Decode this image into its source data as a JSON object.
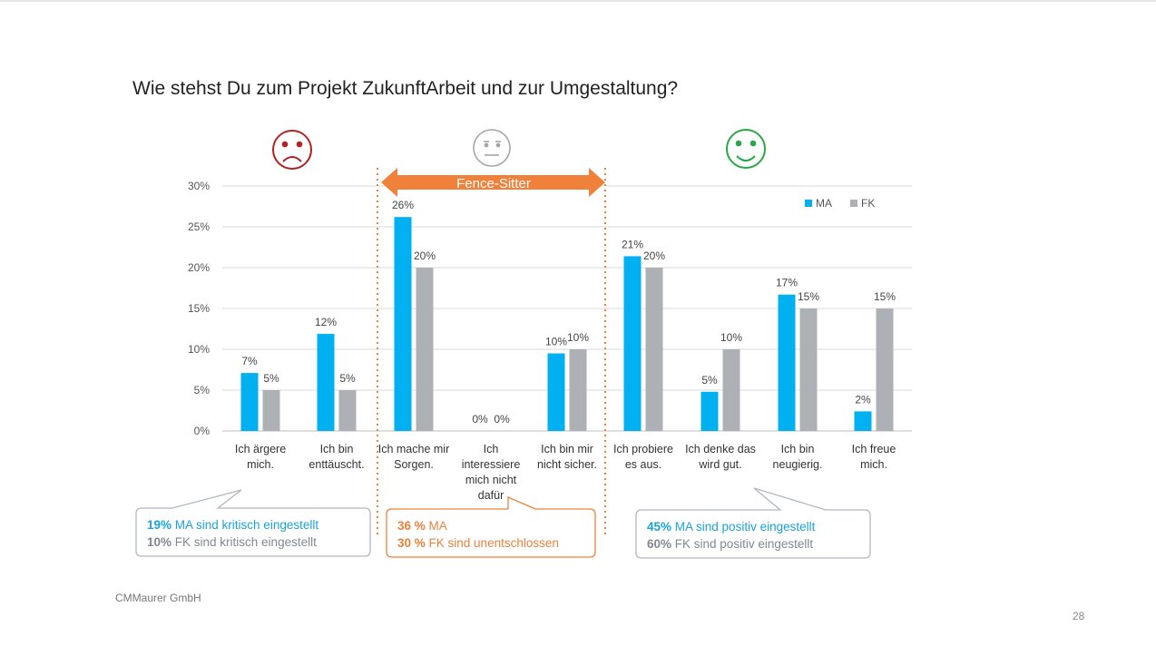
{
  "slide": {
    "title": "Wie stehst Du zum Projekt ZukunftArbeit und zur Umgestaltung?",
    "company": "CMMaurer GmbH",
    "page_number": "28"
  },
  "colors": {
    "ma": "#00b0f0",
    "fk": "#adb1b6",
    "negative": "#b22222",
    "neutral": "#a6a6a6",
    "positive": "#28a745",
    "fence": "#f0813a"
  },
  "fence": {
    "label": "Fence-Sitter"
  },
  "chart_data": {
    "type": "bar",
    "categories": [
      [
        "Ich ärgere",
        "mich."
      ],
      [
        "Ich bin",
        "enttäuscht."
      ],
      [
        "Ich mache mir",
        "Sorgen."
      ],
      [
        "Ich",
        "interessiere",
        "mich nicht",
        "dafür"
      ],
      [
        "Ich bin mir",
        "nicht sicher."
      ],
      [
        "Ich probiere",
        "es aus."
      ],
      [
        "Ich denke das",
        "wird gut."
      ],
      [
        "Ich bin",
        "neugierig."
      ],
      [
        "Ich freue",
        "mich."
      ]
    ],
    "series": [
      {
        "name": "MA",
        "values": [
          7.1,
          11.9,
          26.2,
          0,
          9.5,
          21.4,
          4.8,
          16.7,
          2.4
        ],
        "labels": [
          "7%",
          "12%",
          "26%",
          "0%",
          "10%",
          "21%",
          "5%",
          "17%",
          "2%"
        ]
      },
      {
        "name": "FK",
        "values": [
          5,
          5,
          20,
          0,
          10,
          20,
          10,
          15,
          15
        ],
        "labels": [
          "5%",
          "5%",
          "20%",
          "0%",
          "10%",
          "20%",
          "10%",
          "15%",
          "15%"
        ]
      }
    ],
    "ylim": [
      0,
      30
    ],
    "yticks": [
      "0%",
      "5%",
      "10%",
      "15%",
      "20%",
      "25%",
      "30%"
    ],
    "legend": [
      "MA",
      "FK"
    ],
    "legend_position": "top-right",
    "grid": true
  },
  "callouts": {
    "negative": {
      "line1_pct": "19%",
      "line1_text": " MA sind kritisch eingestellt",
      "line2_pct": "10%",
      "line2_text": " FK  sind kritisch eingestellt"
    },
    "neutral": {
      "line1_pct": "36 %",
      "line1_text": " MA",
      "line2_pct": "30 %",
      "line2_text": " FK sind unentschlossen"
    },
    "positive": {
      "line1_pct": "45%",
      "line1_text": " MA sind positiv eingestellt",
      "line2_pct": "60%",
      "line2_text": " FK  sind positiv eingestellt"
    }
  }
}
